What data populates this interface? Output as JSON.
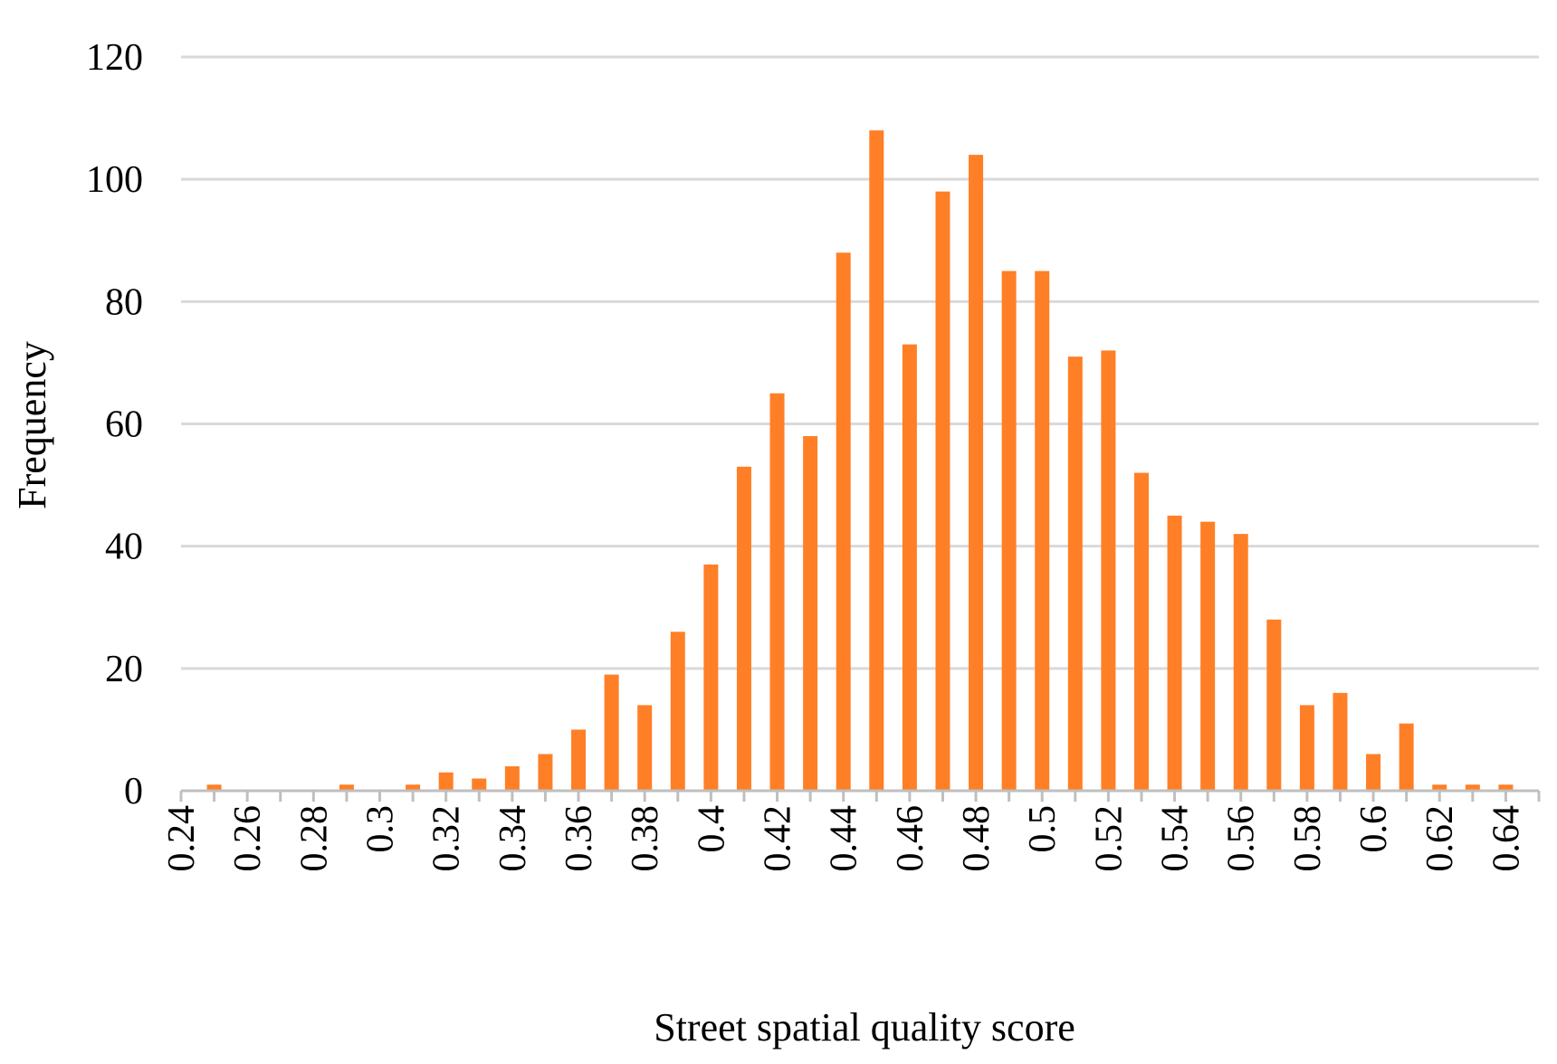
{
  "chart_data": {
    "type": "bar",
    "title": "",
    "xlabel": "Street spatial quality score",
    "ylabel": "Frequency",
    "ylim": [
      0,
      120
    ],
    "yticks": [
      "0",
      "20",
      "40",
      "60",
      "80",
      "100",
      "120"
    ],
    "xticks": [
      "0.24",
      "0.26",
      "0.28",
      "0.3",
      "0.32",
      "0.34",
      "0.36",
      "0.38",
      "0.4",
      "0.42",
      "0.44",
      "0.46",
      "0.48",
      "0.5",
      "0.52",
      "0.54",
      "0.56",
      "0.58",
      "0.6",
      "0.62",
      "0.64"
    ],
    "grid": true,
    "legend": "none",
    "bar_color": "#ff7f27",
    "x": [
      0.25,
      0.26,
      0.27,
      0.28,
      0.29,
      0.3,
      0.31,
      0.32,
      0.33,
      0.34,
      0.35,
      0.36,
      0.37,
      0.38,
      0.39,
      0.4,
      0.41,
      0.42,
      0.43,
      0.44,
      0.45,
      0.46,
      0.47,
      0.48,
      0.49,
      0.5,
      0.51,
      0.52,
      0.53,
      0.54,
      0.55,
      0.56,
      0.57,
      0.58,
      0.59,
      0.6,
      0.61,
      0.62,
      0.63,
      0.64
    ],
    "values": [
      1,
      0,
      0,
      0,
      1,
      0,
      1,
      3,
      2,
      4,
      6,
      10,
      19,
      14,
      26,
      37,
      53,
      65,
      58,
      88,
      108,
      73,
      98,
      104,
      85,
      85,
      71,
      72,
      52,
      45,
      44,
      42,
      28,
      14,
      16,
      6,
      11,
      1,
      1,
      1
    ]
  }
}
